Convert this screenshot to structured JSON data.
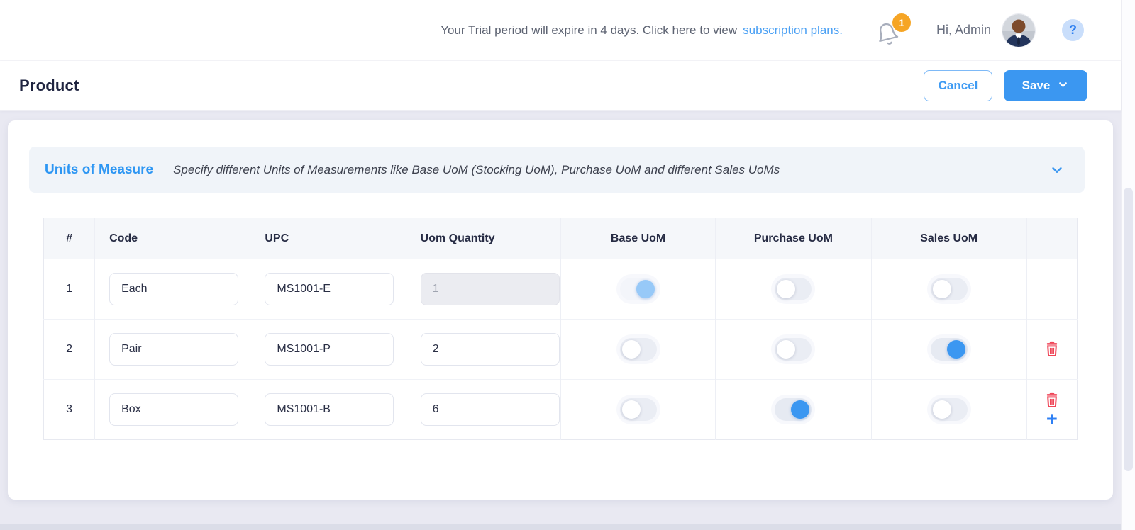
{
  "topbar": {
    "trial_message": "Your Trial period will expire in 4 days. Click here to view",
    "trial_link": "subscription plans.",
    "notification_count": "1",
    "greeting": "Hi, Admin"
  },
  "header": {
    "title": "Product",
    "cancel_label": "Cancel",
    "save_label": "Save"
  },
  "section": {
    "title": "Units of Measure",
    "subtitle": "Specify different Units of Measurements like Base UoM (Stocking UoM), Purchase UoM and different Sales UoMs"
  },
  "table": {
    "columns": [
      "#",
      "Code",
      "UPC",
      "Uom Quantity",
      "Base UoM",
      "Purchase UoM",
      "Sales UoM",
      ""
    ],
    "rows": [
      {
        "num": "1",
        "code": "Each",
        "upc": "MS1001-E",
        "qty": "1",
        "qty_disabled": true,
        "base": true,
        "base_disabled": true,
        "purchase": false,
        "sales": false,
        "actions": []
      },
      {
        "num": "2",
        "code": "Pair",
        "upc": "MS1001-P",
        "qty": "2",
        "qty_disabled": false,
        "base": false,
        "base_disabled": false,
        "purchase": false,
        "sales": true,
        "actions": [
          "delete"
        ]
      },
      {
        "num": "3",
        "code": "Box",
        "upc": "MS1001-B",
        "qty": "6",
        "qty_disabled": false,
        "base": false,
        "base_disabled": false,
        "purchase": true,
        "sales": false,
        "actions": [
          "delete",
          "add"
        ]
      }
    ]
  },
  "icons": {
    "help_glyph": "?",
    "add_glyph": "+"
  },
  "colors": {
    "accent_blue": "#3b97f1",
    "link_blue": "#4aa0f4",
    "badge_orange": "#f6a525",
    "danger_red": "#ef4557",
    "title_navy": "#1f2440",
    "section_band": "#f0f4f9"
  }
}
